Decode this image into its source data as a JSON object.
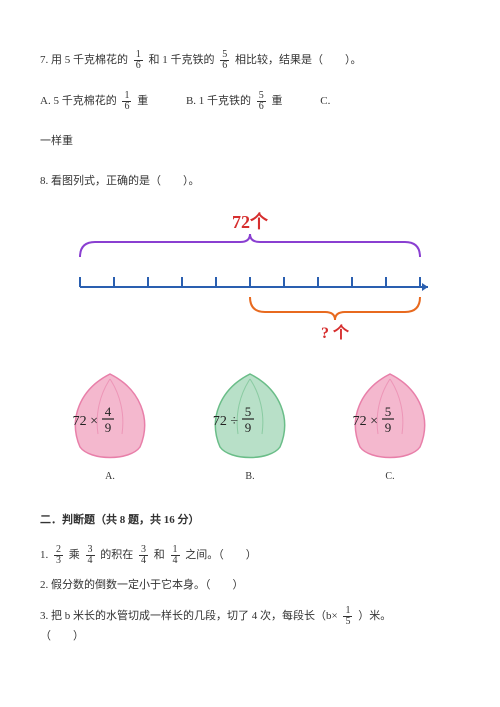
{
  "q7": {
    "text_a": "7. 用 5 千克棉花的",
    "frac1": {
      "num": "1",
      "den": "6"
    },
    "text_b": "和 1 千克铁的",
    "frac2": {
      "num": "5",
      "den": "6"
    },
    "text_c": "相比较，结果是（　　）。",
    "optA_a": "A. 5 千克棉花的",
    "optA_frac": {
      "num": "1",
      "den": "6"
    },
    "optA_b": "重",
    "optB_a": "B. 1 千克铁的",
    "optB_frac": {
      "num": "5",
      "den": "6"
    },
    "optB_b": "重",
    "optC": "C.",
    "optC_line2": "一样重"
  },
  "q8": {
    "text": "8. 看图列式，正确的是（　　）。"
  },
  "diagram": {
    "top_label": "72个",
    "bottom_label": "? 个",
    "top_color": "#d62e2e",
    "brace_top_color": "#8a3fd1",
    "brace_bottom_color": "#e86a1f",
    "tick_color": "#2a5fb0",
    "ticks": 11
  },
  "petals": {
    "A": {
      "label": "A.",
      "expr_l": "72 ×",
      "frac": {
        "num": "4",
        "den": "9"
      },
      "fill": "#f4b8ce",
      "accent": "#e87fa9"
    },
    "B": {
      "label": "B.",
      "expr_l": "72 ÷",
      "frac": {
        "num": "5",
        "den": "9"
      },
      "fill": "#b8e0c8",
      "accent": "#6abd88"
    },
    "C": {
      "label": "C.",
      "expr_l": "72 ×",
      "frac": {
        "num": "5",
        "den": "9"
      },
      "fill": "#f4b8ce",
      "accent": "#e87fa9"
    }
  },
  "section2": {
    "header": "二．判断题（共 8 题，共 16 分）",
    "j1_a": "1.",
    "j1_f1": {
      "num": "2",
      "den": "3"
    },
    "j1_b": "乘",
    "j1_f2": {
      "num": "3",
      "den": "4"
    },
    "j1_c": "的积在",
    "j1_f3": {
      "num": "3",
      "den": "4"
    },
    "j1_d": "和",
    "j1_f4": {
      "num": "1",
      "den": "4"
    },
    "j1_e": "之间。（　　）",
    "j2": "2. 假分数的倒数一定小于它本身。（　　）",
    "j3_a": "3. 把 b 米长的水管切成一样长的几段，切了 4 次，每段长（b×",
    "j3_f": {
      "num": "1",
      "den": "5"
    },
    "j3_b": "）米。",
    "j3_c": "（　　）"
  }
}
